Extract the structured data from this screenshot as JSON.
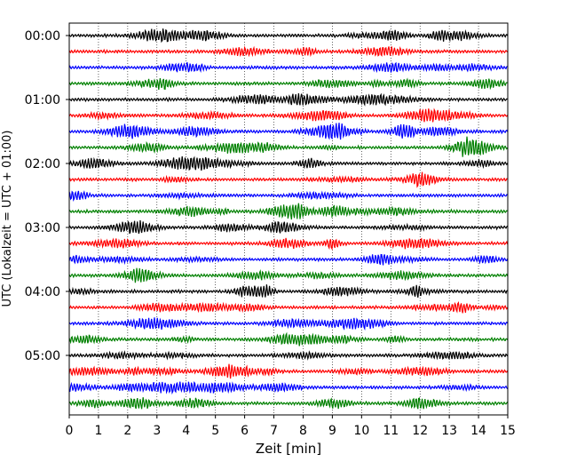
{
  "chart_data": {
    "type": "line",
    "title": "",
    "xlabel": "Zeit  [min]",
    "ylabel": "UTC (Lokalzeit = UTC + 01:00)",
    "xlim": [
      0,
      15
    ],
    "x_ticks": [
      0,
      1,
      2,
      3,
      4,
      5,
      6,
      7,
      8,
      9,
      10,
      11,
      12,
      13,
      14,
      15
    ],
    "y_ticks": [
      "00:00",
      "01:00",
      "02:00",
      "03:00",
      "04:00",
      "05:00"
    ],
    "grid_x": "dotted vertical at each minute",
    "legend": "none",
    "trace_interval_minutes": 15,
    "trace_count": 24,
    "trace_colors": [
      "#000000",
      "#ff0000",
      "#0000ff",
      "#008000"
    ]
  }
}
